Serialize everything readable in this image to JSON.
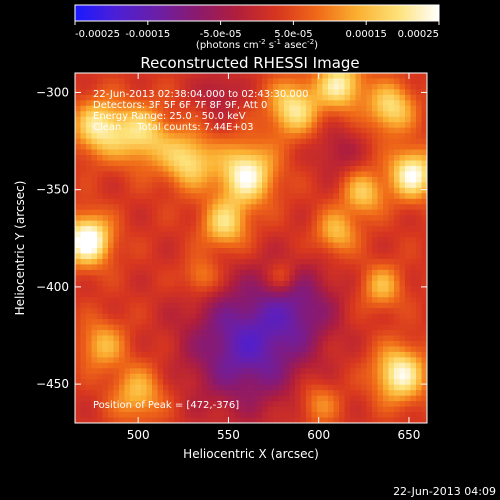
{
  "chart_data": {
    "type": "heatmap",
    "title": "Reconstructed RHESSI Image",
    "xlabel": "Heliocentric X (arcsec)",
    "ylabel": "Heliocentric Y (arcsec)",
    "xlim": [
      465,
      660
    ],
    "ylim": [
      -470,
      -290
    ],
    "x_ticks": [
      500,
      550,
      600,
      650
    ],
    "y_ticks": [
      -300,
      -350,
      -400,
      -450
    ],
    "colorbar": {
      "range": [
        -0.00025,
        0.00025
      ],
      "tick_values": [
        -0.00025,
        -0.00015,
        -5e-05,
        5e-05,
        0.00015,
        0.00025
      ],
      "tick_labels": [
        "-0.00025",
        "-0.00015",
        "-5.0e-05",
        "5.0e-05",
        "0.00015",
        "0.00025"
      ],
      "unit_label": "(photons cm",
      "unit_sup1": "-2",
      "unit_mid": " s",
      "unit_sup2": "-1",
      "unit_mid2": " asec",
      "unit_sup3": "-2",
      "unit_end": ")",
      "colors": [
        "#1a1aff",
        "#4b1fd6",
        "#6a1fa8",
        "#8a1a6f",
        "#b01e3c",
        "#d7361f",
        "#f06a18",
        "#fbb132",
        "#fde27a",
        "#ffffff"
      ]
    },
    "annotations": [
      "22-Jun-2013 02:38:04.000 to 02:43:30.000",
      "Detectors: 3F 5F 6F 7F 8F 9F, Att 0",
      "Energy Range: 25.0 - 50.0 keV",
      "Clean     Total counts: 7.44E+03"
    ],
    "peak_label": "Position of Peak = [472,-376]",
    "peak": [
      472,
      -376
    ],
    "hot_spots": [
      {
        "x": 472,
        "y": -376,
        "sigma": 9,
        "amp": 0.00026
      },
      {
        "x": 478,
        "y": -318,
        "sigma": 10,
        "amp": 0.00018
      },
      {
        "x": 502,
        "y": -322,
        "sigma": 11,
        "amp": 0.00016
      },
      {
        "x": 528,
        "y": -335,
        "sigma": 10,
        "amp": 0.00017
      },
      {
        "x": 560,
        "y": -342,
        "sigma": 11,
        "amp": 0.00022
      },
      {
        "x": 548,
        "y": -368,
        "sigma": 9,
        "amp": 0.00016
      },
      {
        "x": 586,
        "y": -308,
        "sigma": 10,
        "amp": 0.00018
      },
      {
        "x": 612,
        "y": -296,
        "sigma": 9,
        "amp": 0.00019
      },
      {
        "x": 640,
        "y": -308,
        "sigma": 9,
        "amp": 0.00017
      },
      {
        "x": 652,
        "y": -342,
        "sigma": 9,
        "amp": 0.00022
      },
      {
        "x": 625,
        "y": -352,
        "sigma": 8,
        "amp": 0.00014
      },
      {
        "x": 610,
        "y": -372,
        "sigma": 8,
        "amp": 0.00013
      },
      {
        "x": 635,
        "y": -400,
        "sigma": 8,
        "amp": 0.00012
      },
      {
        "x": 645,
        "y": -445,
        "sigma": 10,
        "amp": 0.00021
      },
      {
        "x": 480,
        "y": -430,
        "sigma": 9,
        "amp": 0.00012
      },
      {
        "x": 500,
        "y": -455,
        "sigma": 10,
        "amp": 0.00013
      },
      {
        "x": 535,
        "y": -395,
        "sigma": 7,
        "amp": 0.0001
      },
      {
        "x": 600,
        "y": -460,
        "sigma": 8,
        "amp": 9e-05
      },
      {
        "x": 580,
        "y": -395,
        "sigma": 6,
        "amp": 8e-05
      }
    ],
    "cold_spots": [
      {
        "x": 560,
        "y": -430,
        "sigma": 22,
        "amp": -0.00018
      },
      {
        "x": 590,
        "y": -410,
        "sigma": 15,
        "amp": -0.0001
      },
      {
        "x": 545,
        "y": -300,
        "sigma": 8,
        "amp": -6e-05
      },
      {
        "x": 610,
        "y": -330,
        "sigma": 9,
        "amp": -6e-05
      }
    ]
  },
  "footer_stamp": "22-Jun-2013 04:09"
}
